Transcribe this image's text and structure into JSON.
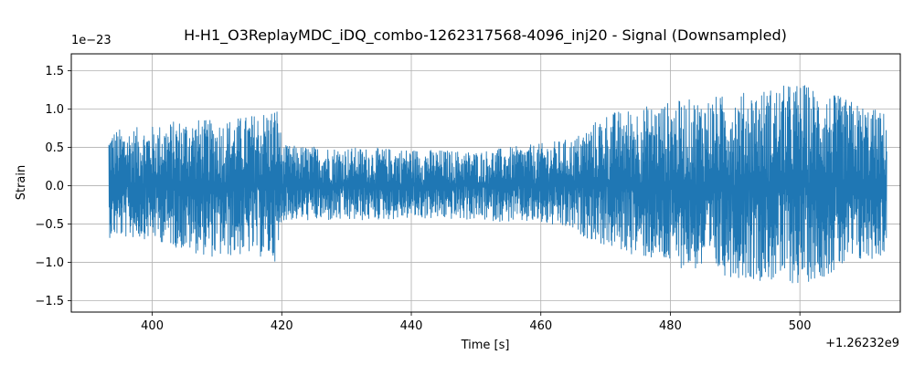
{
  "chart_data": {
    "type": "line",
    "title": "H-H1_O3ReplayMDC_iDQ_combo-1262317568-4096_inj20 - Signal (Downsampled)",
    "xlabel": "Time [s]",
    "ylabel": "Strain",
    "x_offset_label": "+1.26232e9",
    "y_scale_label": "1e−23",
    "xlim": [
      387.5,
      515.5
    ],
    "ylim": [
      -1.65,
      1.72
    ],
    "x_ticks": [
      400,
      420,
      440,
      460,
      480,
      500
    ],
    "x_tick_labels": [
      "400",
      "420",
      "440",
      "460",
      "480",
      "500"
    ],
    "y_ticks": [
      -1.5,
      -1.0,
      -0.5,
      0.0,
      0.5,
      1.0,
      1.5
    ],
    "y_tick_labels": [
      "−1.5",
      "−1.0",
      "−0.5",
      "0.0",
      "0.5",
      "1.0",
      "1.5"
    ],
    "grid": true,
    "color": "#1f77b4",
    "series": [
      {
        "x_range": [
          393.3,
          513.4
        ],
        "envelope": [
          {
            "x": 393.3,
            "lower": -0.68,
            "upper": 0.73
          },
          {
            "x": 400,
            "lower": -0.7,
            "upper": 0.78
          },
          {
            "x": 405,
            "lower": -0.85,
            "upper": 0.88
          },
          {
            "x": 410,
            "lower": -0.95,
            "upper": 0.85
          },
          {
            "x": 415,
            "lower": -0.9,
            "upper": 0.92
          },
          {
            "x": 419.5,
            "lower": -1.0,
            "upper": 1.05
          },
          {
            "x": 420,
            "lower": -0.45,
            "upper": 0.53
          },
          {
            "x": 430,
            "lower": -0.47,
            "upper": 0.5
          },
          {
            "x": 440,
            "lower": -0.43,
            "upper": 0.48
          },
          {
            "x": 450,
            "lower": -0.45,
            "upper": 0.45
          },
          {
            "x": 460,
            "lower": -0.5,
            "upper": 0.55
          },
          {
            "x": 465,
            "lower": -0.6,
            "upper": 0.62
          },
          {
            "x": 470,
            "lower": -0.8,
            "upper": 0.95
          },
          {
            "x": 480,
            "lower": -1.05,
            "upper": 1.1
          },
          {
            "x": 490,
            "lower": -1.2,
            "upper": 1.2
          },
          {
            "x": 500,
            "lower": -1.3,
            "upper": 1.35
          },
          {
            "x": 505,
            "lower": -1.15,
            "upper": 1.2
          },
          {
            "x": 513.4,
            "lower": -0.9,
            "upper": 0.95
          }
        ]
      }
    ]
  }
}
